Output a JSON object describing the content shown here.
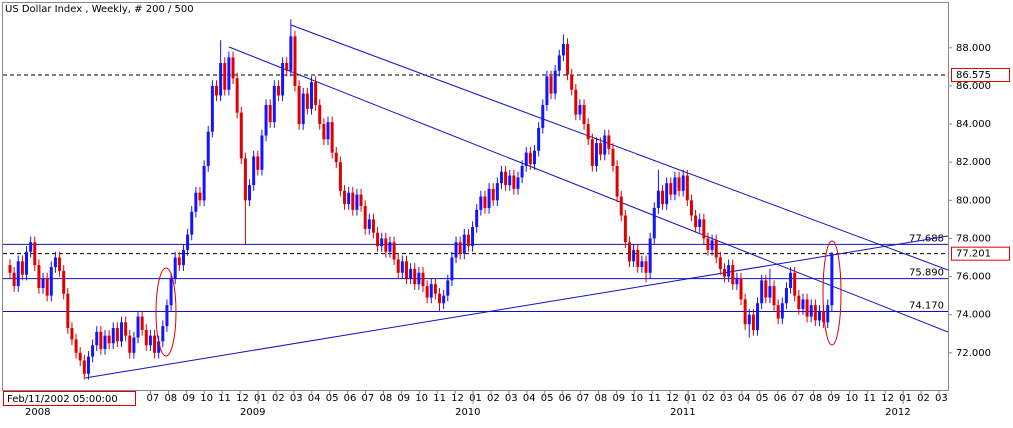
{
  "chart_data": {
    "type": "candlestick",
    "title": "US Dollar Index , Weekly, # 200 / 500",
    "cursor_date": "Feb/11/2002 05:00:00",
    "up_color": "#1414ff",
    "down_color": "#e00000",
    "level_color": "#1010c8",
    "ylim": [
      70.05,
      90.35
    ],
    "yticks": [
      {
        "value": 72,
        "label": "72.000"
      },
      {
        "value": 74,
        "label": "74.000"
      },
      {
        "value": 76,
        "label": "76.000"
      },
      {
        "value": 78,
        "label": "78.000"
      },
      {
        "value": 80,
        "label": "80.000"
      },
      {
        "value": 82,
        "label": "82.000"
      },
      {
        "value": 84,
        "label": "84.000"
      },
      {
        "value": 86,
        "label": "86.000"
      },
      {
        "value": 88,
        "label": "88.000"
      }
    ],
    "levels": [
      {
        "value": 86.575,
        "label": "86.575",
        "style": "dashed",
        "boxed": true
      },
      {
        "value": 77.688,
        "label": "77.688",
        "style": "solid",
        "boxed": false
      },
      {
        "value": 77.201,
        "label": "77.201",
        "style": "dashed",
        "boxed": true
      },
      {
        "value": 75.89,
        "label": "75.890",
        "style": "solid",
        "boxed": false
      },
      {
        "value": 74.17,
        "label": "74.170",
        "style": "solid",
        "boxed": false
      }
    ],
    "month_labels": [
      "07",
      "08",
      "09",
      "10",
      "11",
      "12",
      "01",
      "02",
      "03",
      "04",
      "05",
      "06",
      "07",
      "08",
      "09",
      "10",
      "11",
      "12",
      "01",
      "02",
      "03",
      "04",
      "05",
      "06",
      "07",
      "08",
      "09",
      "10",
      "11",
      "12",
      "01",
      "02",
      "03",
      "04",
      "05",
      "06",
      "07",
      "08",
      "09",
      "10",
      "11",
      "12",
      "01",
      "02",
      "03"
    ],
    "year_labels": [
      "2008",
      "2009",
      "2010",
      "2011",
      "2012"
    ],
    "candles": [
      [
        76.6,
        76.9,
        75.9,
        76.2
      ],
      [
        76.2,
        76.5,
        75.2,
        75.5
      ],
      [
        75.5,
        77.1,
        75.2,
        76.8
      ],
      [
        76.8,
        77.1,
        75.8,
        76.1
      ],
      [
        76.1,
        77.6,
        75.8,
        77.3
      ],
      [
        77.3,
        78.1,
        77.0,
        77.8
      ],
      [
        77.8,
        78.1,
        76.3,
        76.6
      ],
      [
        76.6,
        76.9,
        75.1,
        75.4
      ],
      [
        75.4,
        76.2,
        75.1,
        75.9
      ],
      [
        75.9,
        76.2,
        74.7,
        75.0
      ],
      [
        75.0,
        76.8,
        74.7,
        76.5
      ],
      [
        76.5,
        77.3,
        76.2,
        77.0
      ],
      [
        77.0,
        77.3,
        76.0,
        76.3
      ],
      [
        76.3,
        76.6,
        74.8,
        75.1
      ],
      [
        75.1,
        75.4,
        73.0,
        73.3
      ],
      [
        73.3,
        73.6,
        72.4,
        72.7
      ],
      [
        72.7,
        73.0,
        71.7,
        72.0
      ],
      [
        72.0,
        72.3,
        71.3,
        71.6
      ],
      [
        71.6,
        71.9,
        70.6,
        70.9
      ],
      [
        70.9,
        72.1,
        70.6,
        71.8
      ],
      [
        71.8,
        72.7,
        71.5,
        72.4
      ],
      [
        72.4,
        73.4,
        72.1,
        73.1
      ],
      [
        73.1,
        73.4,
        71.9,
        72.2
      ],
      [
        72.2,
        73.2,
        71.9,
        72.9
      ],
      [
        72.9,
        73.2,
        72.2,
        72.5
      ],
      [
        72.5,
        73.6,
        72.2,
        73.3
      ],
      [
        73.3,
        73.6,
        72.3,
        72.6
      ],
      [
        72.6,
        73.9,
        72.3,
        73.6
      ],
      [
        73.6,
        73.9,
        72.6,
        72.9
      ],
      [
        72.9,
        73.2,
        71.7,
        72.0
      ],
      [
        72.0,
        73.1,
        71.7,
        72.8
      ],
      [
        72.8,
        74.2,
        72.5,
        73.9
      ],
      [
        73.9,
        74.2,
        72.9,
        73.2
      ],
      [
        73.2,
        73.5,
        72.1,
        72.4
      ],
      [
        72.4,
        73.2,
        72.1,
        72.9
      ],
      [
        72.9,
        73.2,
        71.7,
        72.0
      ],
      [
        72.0,
        72.9,
        71.7,
        72.6
      ],
      [
        72.6,
        73.7,
        72.3,
        73.4
      ],
      [
        73.4,
        74.8,
        73.1,
        74.5
      ],
      [
        74.5,
        76.2,
        74.2,
        75.9
      ],
      [
        75.9,
        77.3,
        75.6,
        77.0
      ],
      [
        77.0,
        77.3,
        76.3,
        76.6
      ],
      [
        76.6,
        77.7,
        76.3,
        77.4
      ],
      [
        77.4,
        78.5,
        77.1,
        78.2
      ],
      [
        78.2,
        79.7,
        77.9,
        79.4
      ],
      [
        79.4,
        80.7,
        79.1,
        80.4
      ],
      [
        80.4,
        80.7,
        79.7,
        80.0
      ],
      [
        80.0,
        82.1,
        79.7,
        81.8
      ],
      [
        81.8,
        83.9,
        81.5,
        83.6
      ],
      [
        83.6,
        86.3,
        83.3,
        86.0
      ],
      [
        86.0,
        86.3,
        85.2,
        85.5
      ],
      [
        85.5,
        88.4,
        85.2,
        87.2
      ],
      [
        87.2,
        87.5,
        85.5,
        85.8
      ],
      [
        85.8,
        87.8,
        85.5,
        87.5
      ],
      [
        87.5,
        87.8,
        86.1,
        86.4
      ],
      [
        86.4,
        86.7,
        84.3,
        84.6
      ],
      [
        84.6,
        84.9,
        81.9,
        82.2
      ],
      [
        82.2,
        82.5,
        77.7,
        80.0
      ],
      [
        80.0,
        81.1,
        79.7,
        80.8
      ],
      [
        80.8,
        82.6,
        80.5,
        82.3
      ],
      [
        82.3,
        82.6,
        81.3,
        81.6
      ],
      [
        81.6,
        83.7,
        81.3,
        83.4
      ],
      [
        83.4,
        85.3,
        83.1,
        85.0
      ],
      [
        85.0,
        85.3,
        83.8,
        84.1
      ],
      [
        84.1,
        86.3,
        83.8,
        86.0
      ],
      [
        86.0,
        86.3,
        85.2,
        85.5
      ],
      [
        85.5,
        87.5,
        85.2,
        87.2
      ],
      [
        87.2,
        87.5,
        86.5,
        86.8
      ],
      [
        86.8,
        89.5,
        86.5,
        88.6
      ],
      [
        88.6,
        88.9,
        85.7,
        86.0
      ],
      [
        86.0,
        86.3,
        83.7,
        84.0
      ],
      [
        84.0,
        85.9,
        83.7,
        85.6
      ],
      [
        85.6,
        85.9,
        84.5,
        84.8
      ],
      [
        84.8,
        86.5,
        84.5,
        86.2
      ],
      [
        86.2,
        86.5,
        84.7,
        85.0
      ],
      [
        85.0,
        85.3,
        83.7,
        84.0
      ],
      [
        84.0,
        84.3,
        82.9,
        83.2
      ],
      [
        83.2,
        84.4,
        82.9,
        84.1
      ],
      [
        84.1,
        84.4,
        82.2,
        82.5
      ],
      [
        82.5,
        82.8,
        81.7,
        82.0
      ],
      [
        82.0,
        82.3,
        80.2,
        80.5
      ],
      [
        80.5,
        80.8,
        79.5,
        79.8
      ],
      [
        79.8,
        80.7,
        79.5,
        80.4
      ],
      [
        80.4,
        80.7,
        79.2,
        79.5
      ],
      [
        79.5,
        80.6,
        79.2,
        80.3
      ],
      [
        80.3,
        80.6,
        79.4,
        79.7
      ],
      [
        79.7,
        80.0,
        78.2,
        78.5
      ],
      [
        78.5,
        79.3,
        78.2,
        79.0
      ],
      [
        79.0,
        79.3,
        78.0,
        78.3
      ],
      [
        78.3,
        78.6,
        77.3,
        77.6
      ],
      [
        77.6,
        78.3,
        77.3,
        78.0
      ],
      [
        78.0,
        78.3,
        77.0,
        77.3
      ],
      [
        77.3,
        78.1,
        77.0,
        77.8
      ],
      [
        77.8,
        78.1,
        76.6,
        76.9
      ],
      [
        76.9,
        77.2,
        75.9,
        76.2
      ],
      [
        76.2,
        77.1,
        75.9,
        76.8
      ],
      [
        76.8,
        77.1,
        75.6,
        75.9
      ],
      [
        75.9,
        76.7,
        75.6,
        76.4
      ],
      [
        76.4,
        76.7,
        75.3,
        75.6
      ],
      [
        75.6,
        76.5,
        75.3,
        76.2
      ],
      [
        76.2,
        76.5,
        75.2,
        75.5
      ],
      [
        75.5,
        75.8,
        74.6,
        74.9
      ],
      [
        74.9,
        75.9,
        74.6,
        75.6
      ],
      [
        75.6,
        75.9,
        74.8,
        75.1
      ],
      [
        75.1,
        75.4,
        74.2,
        74.6
      ],
      [
        74.6,
        75.3,
        74.3,
        75.0
      ],
      [
        75.0,
        76.1,
        74.7,
        75.8
      ],
      [
        75.8,
        77.3,
        75.5,
        77.0
      ],
      [
        77.0,
        78.1,
        76.7,
        77.8
      ],
      [
        77.8,
        78.1,
        76.9,
        77.2
      ],
      [
        77.2,
        78.5,
        76.9,
        78.2
      ],
      [
        78.2,
        78.5,
        77.3,
        77.6
      ],
      [
        77.6,
        78.9,
        77.3,
        78.6
      ],
      [
        78.6,
        79.8,
        78.3,
        79.5
      ],
      [
        79.5,
        80.5,
        79.2,
        80.2
      ],
      [
        80.2,
        80.5,
        79.3,
        79.6
      ],
      [
        79.6,
        80.9,
        79.3,
        80.6
      ],
      [
        80.6,
        80.9,
        79.7,
        80.0
      ],
      [
        80.0,
        81.2,
        79.7,
        80.9
      ],
      [
        80.9,
        81.8,
        80.6,
        81.5
      ],
      [
        81.5,
        81.8,
        80.5,
        80.8
      ],
      [
        80.8,
        81.6,
        80.5,
        81.3
      ],
      [
        81.3,
        81.6,
        80.3,
        80.6
      ],
      [
        80.6,
        81.5,
        80.3,
        81.2
      ],
      [
        81.2,
        82.1,
        80.9,
        81.8
      ],
      [
        81.8,
        82.8,
        81.5,
        82.5
      ],
      [
        82.5,
        82.8,
        81.6,
        81.9
      ],
      [
        81.9,
        82.9,
        81.6,
        82.6
      ],
      [
        82.6,
        84.1,
        82.3,
        83.8
      ],
      [
        83.8,
        85.3,
        83.5,
        85.0
      ],
      [
        85.0,
        86.8,
        84.7,
        86.5
      ],
      [
        86.5,
        86.8,
        85.3,
        85.6
      ],
      [
        85.6,
        87.1,
        85.3,
        86.8
      ],
      [
        86.8,
        87.9,
        86.5,
        87.6
      ],
      [
        87.6,
        88.7,
        87.3,
        88.2
      ],
      [
        88.2,
        88.5,
        86.3,
        86.6
      ],
      [
        86.6,
        86.9,
        85.5,
        85.8
      ],
      [
        85.8,
        86.1,
        84.2,
        84.5
      ],
      [
        84.5,
        85.3,
        84.2,
        85.0
      ],
      [
        85.0,
        85.3,
        83.7,
        84.0
      ],
      [
        84.0,
        84.3,
        82.9,
        83.2
      ],
      [
        83.2,
        83.5,
        81.5,
        81.8
      ],
      [
        81.8,
        83.3,
        81.5,
        83.0
      ],
      [
        83.0,
        83.3,
        82.1,
        82.4
      ],
      [
        82.4,
        83.7,
        82.1,
        83.4
      ],
      [
        83.4,
        83.7,
        82.4,
        82.7
      ],
      [
        82.7,
        83.0,
        81.5,
        81.8
      ],
      [
        81.8,
        82.1,
        79.9,
        80.2
      ],
      [
        80.2,
        80.5,
        78.9,
        79.2
      ],
      [
        79.2,
        79.5,
        77.5,
        77.8
      ],
      [
        77.8,
        78.1,
        76.5,
        76.8
      ],
      [
        76.8,
        77.7,
        76.5,
        77.4
      ],
      [
        77.4,
        77.7,
        76.2,
        76.5
      ],
      [
        76.5,
        77.1,
        76.2,
        76.8
      ],
      [
        76.8,
        77.1,
        75.7,
        76.2
      ],
      [
        76.2,
        78.3,
        75.9,
        78.0
      ],
      [
        78.0,
        79.9,
        77.7,
        79.6
      ],
      [
        79.6,
        81.6,
        79.3,
        80.5
      ],
      [
        80.5,
        80.8,
        79.5,
        79.8
      ],
      [
        79.8,
        81.2,
        79.5,
        80.9
      ],
      [
        80.9,
        81.2,
        80.0,
        80.3
      ],
      [
        80.3,
        81.5,
        80.0,
        81.2
      ],
      [
        81.2,
        81.5,
        80.2,
        80.5
      ],
      [
        80.5,
        81.6,
        80.2,
        81.3
      ],
      [
        81.3,
        81.6,
        79.7,
        80.0
      ],
      [
        80.0,
        80.3,
        78.9,
        79.2
      ],
      [
        79.2,
        79.5,
        78.3,
        78.6
      ],
      [
        78.6,
        79.3,
        78.3,
        79.0
      ],
      [
        79.0,
        79.3,
        77.7,
        78.0
      ],
      [
        78.0,
        78.3,
        77.1,
        77.4
      ],
      [
        77.4,
        78.2,
        77.1,
        77.9
      ],
      [
        77.9,
        78.2,
        76.7,
        77.0
      ],
      [
        77.0,
        77.3,
        76.1,
        76.4
      ],
      [
        76.4,
        76.7,
        75.7,
        76.0
      ],
      [
        76.0,
        76.9,
        75.7,
        76.6
      ],
      [
        76.6,
        76.9,
        75.3,
        75.6
      ],
      [
        75.6,
        76.2,
        75.3,
        75.9
      ],
      [
        75.9,
        76.2,
        74.5,
        74.8
      ],
      [
        74.8,
        75.1,
        73.2,
        73.5
      ],
      [
        73.5,
        74.3,
        72.8,
        74.0
      ],
      [
        74.0,
        74.3,
        72.9,
        73.2
      ],
      [
        73.2,
        74.9,
        72.9,
        74.6
      ],
      [
        74.6,
        76.1,
        74.3,
        75.8
      ],
      [
        75.8,
        76.1,
        74.6,
        74.9
      ],
      [
        74.9,
        76.4,
        74.6,
        75.5
      ],
      [
        75.5,
        75.8,
        74.2,
        74.5
      ],
      [
        74.5,
        74.8,
        73.5,
        73.8
      ],
      [
        73.8,
        74.9,
        73.5,
        74.6
      ],
      [
        74.6,
        75.7,
        74.3,
        75.4
      ],
      [
        75.4,
        76.5,
        75.1,
        76.2
      ],
      [
        76.2,
        76.5,
        74.7,
        75.0
      ],
      [
        75.0,
        75.3,
        74.0,
        74.3
      ],
      [
        74.3,
        75.1,
        74.0,
        74.8
      ],
      [
        74.8,
        75.1,
        73.6,
        73.9
      ],
      [
        73.9,
        74.8,
        73.6,
        74.5
      ],
      [
        74.5,
        74.8,
        73.4,
        73.7
      ],
      [
        73.7,
        74.5,
        73.4,
        74.2
      ],
      [
        74.2,
        74.5,
        73.3,
        73.6
      ],
      [
        73.6,
        74.8,
        73.3,
        74.5
      ],
      [
        74.5,
        77.3,
        74.2,
        77.2
      ]
    ]
  }
}
